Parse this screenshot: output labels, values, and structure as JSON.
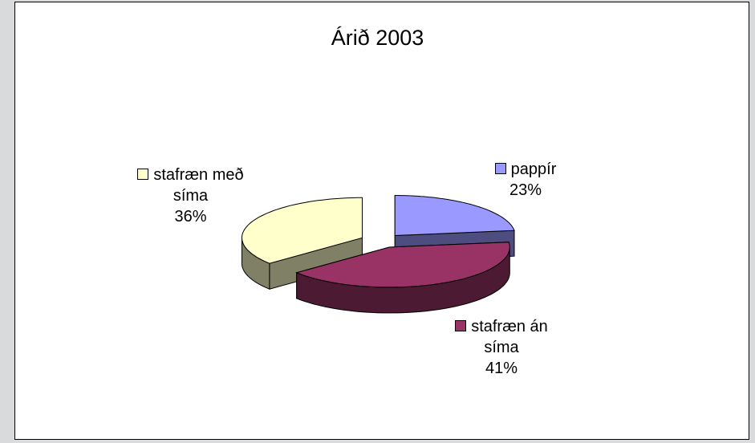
{
  "chart_data": {
    "type": "pie3d",
    "title": "Árið 2003",
    "categories": [
      "pappír",
      "stafræn án síma",
      "stafræn með síma"
    ],
    "values": [
      23,
      41,
      36
    ],
    "value_labels": [
      "23%",
      "41%",
      "36%"
    ],
    "colors": [
      "#9999ff",
      "#993366",
      "#ffffcc"
    ]
  }
}
